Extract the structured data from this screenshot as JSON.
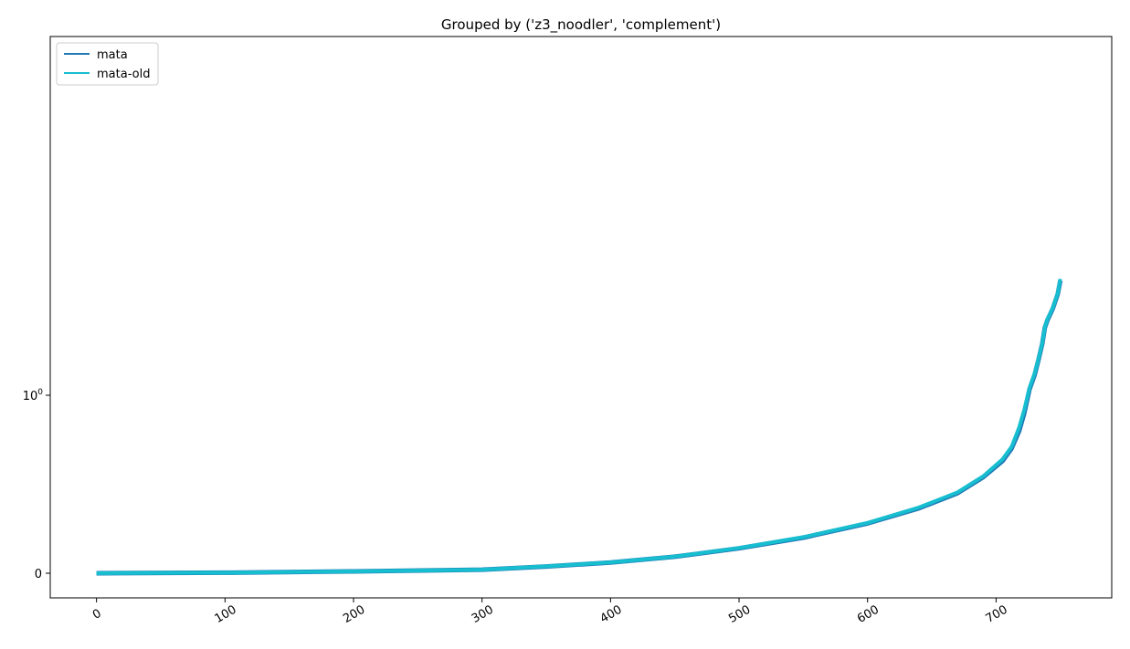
{
  "chart_data": {
    "type": "line",
    "title": "Grouped by ('z3_noodler', 'complement')",
    "xlabel": "",
    "ylabel": "",
    "xlim": [
      -36,
      790
    ],
    "x_ticks": [
      0,
      100,
      200,
      300,
      400,
      500,
      600,
      700
    ],
    "y_scale": "symlog",
    "y_ticks": [
      {
        "value": 0,
        "base": "0",
        "exp": ""
      },
      {
        "value": 1,
        "base": "10",
        "exp": "0"
      }
    ],
    "grid": false,
    "legend_position": "top-left",
    "series": [
      {
        "name": "mata",
        "color": "#1f77b4",
        "x": [
          0,
          100,
          200,
          300,
          350,
          400,
          450,
          500,
          550,
          600,
          640,
          670,
          690,
          705,
          712,
          718,
          722,
          726,
          730,
          733,
          736,
          738,
          740,
          744,
          748,
          750
        ],
        "y": [
          0.0,
          0.003,
          0.01,
          0.02,
          0.038,
          0.06,
          0.093,
          0.14,
          0.2,
          0.28,
          0.365,
          0.45,
          0.54,
          0.63,
          0.7,
          0.8,
          0.9,
          1.08,
          1.3,
          1.58,
          1.95,
          2.4,
          2.65,
          3.05,
          3.7,
          4.4
        ]
      },
      {
        "name": "mata-old",
        "color": "#17becf",
        "x": [
          0,
          100,
          200,
          300,
          350,
          400,
          450,
          500,
          550,
          600,
          640,
          670,
          690,
          705,
          712,
          718,
          722,
          726,
          730,
          733,
          736,
          738,
          740,
          744,
          748,
          750
        ],
        "y": [
          0.0,
          0.003,
          0.01,
          0.02,
          0.039,
          0.061,
          0.094,
          0.142,
          0.203,
          0.283,
          0.37,
          0.455,
          0.545,
          0.64,
          0.71,
          0.82,
          0.92,
          1.1,
          1.33,
          1.6,
          1.97,
          2.42,
          2.68,
          3.08,
          3.75,
          4.5
        ]
      }
    ]
  }
}
